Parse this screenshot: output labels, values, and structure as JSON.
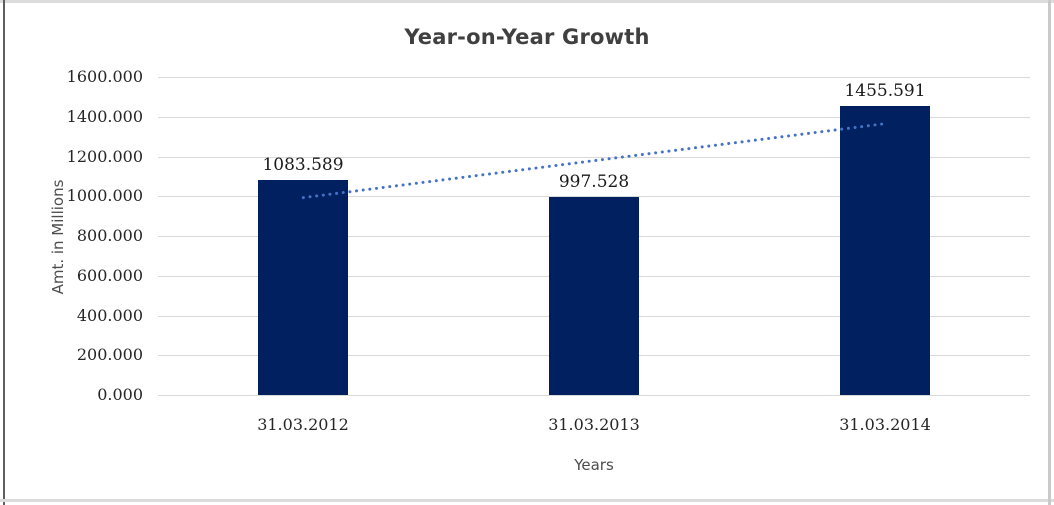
{
  "chart_data": {
    "type": "bar",
    "title": "Year-on-Year Growth",
    "xlabel": "Years",
    "ylabel": "Amt. in Millions",
    "categories": [
      "31.03.2012",
      "31.03.2013",
      "31.03.2014"
    ],
    "values": [
      1083.589,
      997.528,
      1455.591
    ],
    "data_labels": [
      "1083.589",
      "997.528",
      "1455.591"
    ],
    "ylim": [
      0,
      1600
    ],
    "ytick_step": 200,
    "ytick_labels": [
      "0.000",
      "200.000",
      "400.000",
      "600.000",
      "800.000",
      "1000.000",
      "1200.000",
      "1400.000",
      "1600.000"
    ],
    "grid": true,
    "legend": "none",
    "trendline": {
      "type": "linear",
      "style": "dotted",
      "start_value": 993,
      "end_value": 1365
    },
    "colors": {
      "bar": "#002060",
      "trendline": "#4472C4",
      "gridline": "#D9D9D9",
      "title_text": "#404040",
      "axis_title_text": "#4D4D4D",
      "tick_text": "#262626",
      "data_label_text": "#1A1A1A",
      "frame_left": "#5F5F5F",
      "frame_light": "#DCDCDC",
      "frame_right": "#C9C9C9"
    }
  }
}
